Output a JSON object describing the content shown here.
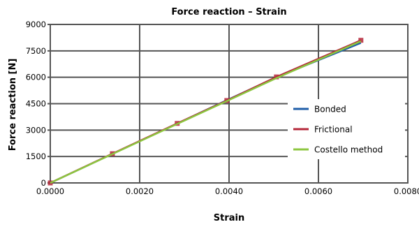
{
  "chart_data": {
    "type": "line",
    "title": "Force reaction – Strain",
    "xlabel": "Strain",
    "ylabel": "Force reaction [N]",
    "xlim": [
      0,
      0.008
    ],
    "ylim": [
      0,
      9000
    ],
    "x_ticks": [
      "0.0000",
      "0.0020",
      "0.0040",
      "0.0060",
      "0.0080"
    ],
    "y_ticks": [
      "0",
      "1500",
      "3000",
      "4500",
      "6000",
      "7500",
      "9000"
    ],
    "x_tick_values": [
      0,
      0.002,
      0.004,
      0.006,
      0.008
    ],
    "y_tick_values": [
      0,
      1500,
      3000,
      4500,
      6000,
      7500,
      9000
    ],
    "grid": true,
    "legend_position": "right",
    "series": [
      {
        "name": "Bonded",
        "color": "#1f5ea8",
        "marker": "none",
        "x": [
          0,
          0.00139,
          0.00284,
          0.00395,
          0.00506,
          0.00695
        ],
        "y": [
          0,
          1650,
          3370,
          4700,
          6000,
          7950
        ]
      },
      {
        "name": "Frictional",
        "color": "#b5273a",
        "marker": "square",
        "x": [
          0,
          0.00139,
          0.00284,
          0.00395,
          0.00506,
          0.00695
        ],
        "y": [
          0,
          1660,
          3380,
          4680,
          6020,
          8100
        ]
      },
      {
        "name": "Costello method",
        "color": "#8cc63f",
        "marker": "none",
        "x": [
          0,
          0.00139,
          0.00284,
          0.00395,
          0.00506,
          0.00695
        ],
        "y": [
          0,
          1640,
          3350,
          4650,
          5950,
          8050
        ]
      }
    ]
  }
}
